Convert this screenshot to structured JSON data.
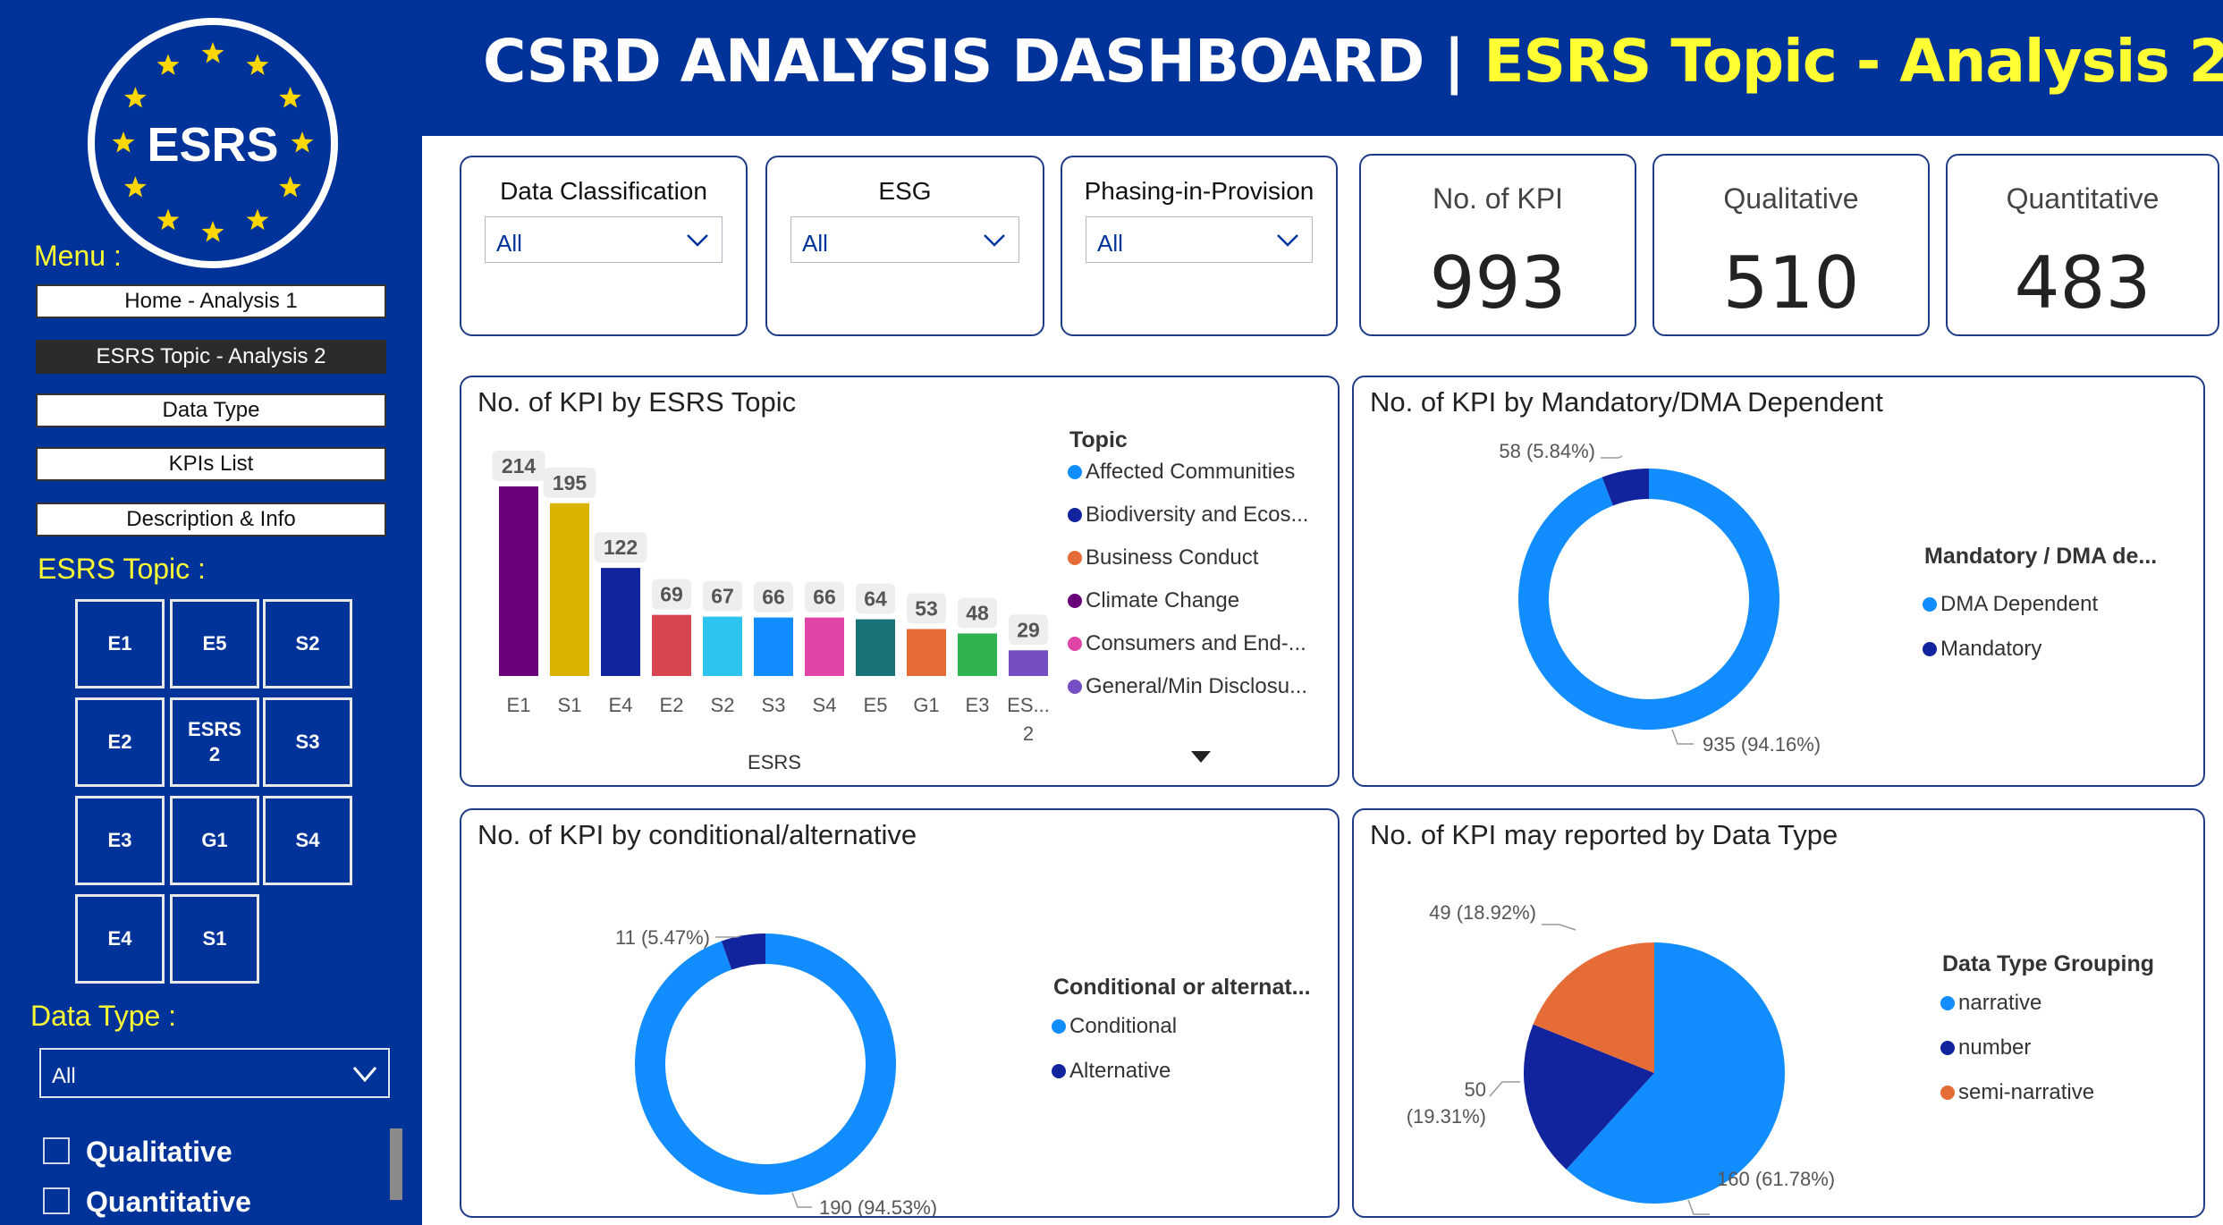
{
  "header": {
    "title_main": "CSRD ANALYSIS DASHBOARD",
    "title_sep": " | ",
    "title_accent": "ESRS Topic - Analysis 2"
  },
  "logo": {
    "text": "ESRS"
  },
  "sidebar": {
    "menu_label": "Menu :",
    "menu_items": [
      {
        "label": "Home - Analysis 1",
        "active": false
      },
      {
        "label": "ESRS Topic - Analysis 2",
        "active": true
      },
      {
        "label": "Data Type",
        "active": false
      },
      {
        "label": "KPIs List",
        "active": false
      },
      {
        "label": "Description & Info",
        "active": false
      }
    ],
    "topic_label": "ESRS Topic :",
    "topics": [
      "E1",
      "E5",
      "S2",
      "E2",
      "ESRS 2",
      "S3",
      "E3",
      "G1",
      "S4",
      "E4",
      "S1"
    ],
    "data_type_label": "Data Type :",
    "data_type_value": "All",
    "checkboxes": [
      "Qualitative",
      "Quantitative"
    ]
  },
  "slicers": [
    {
      "title": "Data Classification",
      "value": "All"
    },
    {
      "title": "ESG",
      "value": "All"
    },
    {
      "title": "Phasing-in-Provision",
      "value": "All"
    }
  ],
  "kpis": [
    {
      "label": "No. of KPI",
      "value": "993"
    },
    {
      "label": "Qualitative",
      "value": "510"
    },
    {
      "label": "Quantitative",
      "value": "483"
    }
  ],
  "colors": {
    "brand": "#003399",
    "accent": "#ffff33",
    "light_blue": "#118dff",
    "dark_blue": "#12239e",
    "orange": "#e66c37"
  },
  "chart_data": [
    {
      "type": "bar",
      "title": "No. of KPI by ESRS Topic",
      "xlabel": "ESRS",
      "categories": [
        "E1",
        "S1",
        "E4",
        "E2",
        "S2",
        "S3",
        "S4",
        "E5",
        "G1",
        "E3",
        "ESRS 2"
      ],
      "category_labels": [
        "E1",
        "S1",
        "E4",
        "E2",
        "S2",
        "S3",
        "S4",
        "E5",
        "G1",
        "E3",
        "ES...\n2"
      ],
      "values": [
        214,
        195,
        122,
        69,
        67,
        66,
        66,
        64,
        53,
        48,
        29
      ],
      "bar_colors": [
        "#6b007b",
        "#d9b300",
        "#12239e",
        "#d64550",
        "#2ec4f0",
        "#118dff",
        "#e044a7",
        "#197278",
        "#e66c37",
        "#2fb350",
        "#744ec2"
      ],
      "legend_title": "Topic",
      "legend": [
        {
          "name": "Affected Communities",
          "color": "#118dff"
        },
        {
          "name": "Biodiversity and Ecos...",
          "color": "#12239e"
        },
        {
          "name": "Business Conduct",
          "color": "#e66c37"
        },
        {
          "name": "Climate Change",
          "color": "#6b007b"
        },
        {
          "name": "Consumers and End-...",
          "color": "#e044a7"
        },
        {
          "name": "General/Min Disclosu...",
          "color": "#744ec2"
        }
      ]
    },
    {
      "type": "pie",
      "donut": true,
      "title": "No. of KPI by Mandatory/DMA Dependent",
      "legend_title": "Mandatory / DMA de...",
      "slices": [
        {
          "name": "DMA Dependent",
          "value": 935,
          "label": "935 (94.16%)",
          "color": "#118dff"
        },
        {
          "name": "Mandatory",
          "value": 58,
          "label": "58 (5.84%)",
          "color": "#12239e"
        }
      ]
    },
    {
      "type": "pie",
      "donut": true,
      "title": "No. of KPI by conditional/alternative",
      "legend_title": "Conditional or alternat...",
      "slices": [
        {
          "name": "Conditional",
          "value": 190,
          "label": "190 (94.53%)",
          "color": "#118dff"
        },
        {
          "name": "Alternative",
          "value": 11,
          "label": "11 (5.47%)",
          "color": "#12239e"
        }
      ]
    },
    {
      "type": "pie",
      "donut": false,
      "title": "No. of KPI may reported by Data Type",
      "legend_title": "Data Type Grouping",
      "slices": [
        {
          "name": "narrative",
          "value": 160,
          "label": "160 (61.78%)",
          "color": "#118dff"
        },
        {
          "name": "number",
          "value": 50,
          "label": "50\n(19.31%)",
          "color": "#12239e"
        },
        {
          "name": "semi-narrative",
          "value": 49,
          "label": "49 (18.92%)",
          "color": "#e66c37"
        }
      ]
    }
  ]
}
